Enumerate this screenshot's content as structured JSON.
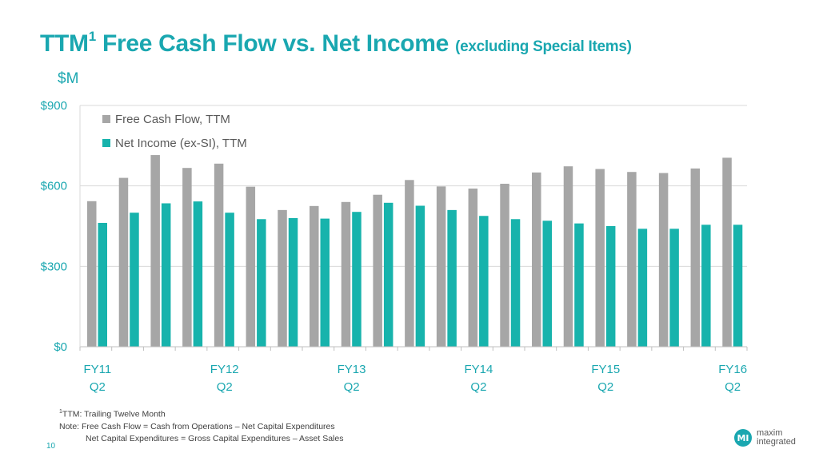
{
  "slide": {
    "title_main": "TTM",
    "title_sup": "1",
    "title_rest": " Free Cash Flow vs. Net Income ",
    "title_sub": "(excluding Special Items)",
    "unit_label": "$M",
    "page_number": "10",
    "footnote_sup": "1",
    "footnote_1": "TTM: Trailing Twelve Month",
    "footnote_2": "Note:  Free Cash Flow = Cash from Operations – Net Capital Expenditures",
    "footnote_3": "Net Capital Expenditures = Gross Capital Expenditures – Asset Sales",
    "logo_text_1": "maxim",
    "logo_text_2": "integrated",
    "logo_mark": "MI"
  },
  "chart_data": {
    "type": "bar",
    "ylim": [
      0,
      900
    ],
    "y_ticks": [
      0,
      300,
      600,
      900
    ],
    "y_tick_labels": [
      "$0",
      "$300",
      "$600",
      "$900"
    ],
    "grid": true,
    "legend_position": "top-left",
    "x_labels": [
      {
        "index": 0,
        "line1": "FY11",
        "line2": "Q2"
      },
      {
        "index": 4,
        "line1": "FY12",
        "line2": "Q2"
      },
      {
        "index": 8,
        "line1": "FY13",
        "line2": "Q2"
      },
      {
        "index": 12,
        "line1": "FY14",
        "line2": "Q2"
      },
      {
        "index": 16,
        "line1": "FY15",
        "line2": "Q2"
      },
      {
        "index": 20,
        "line1": "FY16",
        "line2": "Q2"
      }
    ],
    "series": [
      {
        "name": "Free Cash Flow, TTM",
        "color": "#a6a6a6",
        "values": [
          543,
          630,
          715,
          667,
          683,
          597,
          510,
          525,
          540,
          567,
          622,
          598,
          590,
          608,
          650,
          673,
          663,
          652,
          648,
          665,
          705
        ]
      },
      {
        "name": "Net Income (ex-SI), TTM",
        "color": "#17b3ac",
        "values": [
          462,
          500,
          535,
          542,
          500,
          476,
          480,
          478,
          503,
          537,
          526,
          510,
          488,
          476,
          470,
          460,
          450,
          440,
          440,
          455,
          455
        ]
      }
    ]
  }
}
